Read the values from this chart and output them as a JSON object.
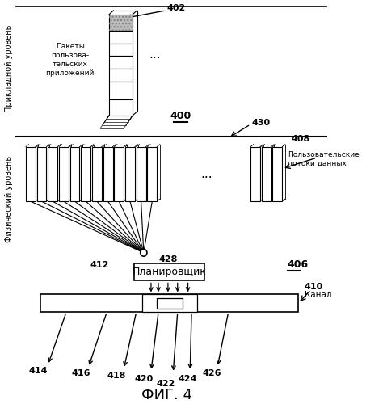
{
  "bg_color": "#ffffff",
  "title": "ФИГ. 4",
  "label_400": "400",
  "label_402": "402",
  "label_406": "406",
  "label_408": "408",
  "label_410": "410",
  "label_412": "412",
  "label_414": "414",
  "label_416": "416",
  "label_418": "418",
  "label_420": "420",
  "label_422": "422",
  "label_424": "424",
  "label_426": "426",
  "label_428": "428",
  "label_430": "430",
  "text_packets": "Пакеты\nпользова-\nтельских\nприложений",
  "text_user_streams": "Пользовательские\nпотоки данных",
  "text_channel": "Канал",
  "text_scheduler": "Планировщик",
  "text_appl_level": "Прикладной уровень",
  "text_phys_level": "Физический уровень",
  "line_color": "#000000"
}
